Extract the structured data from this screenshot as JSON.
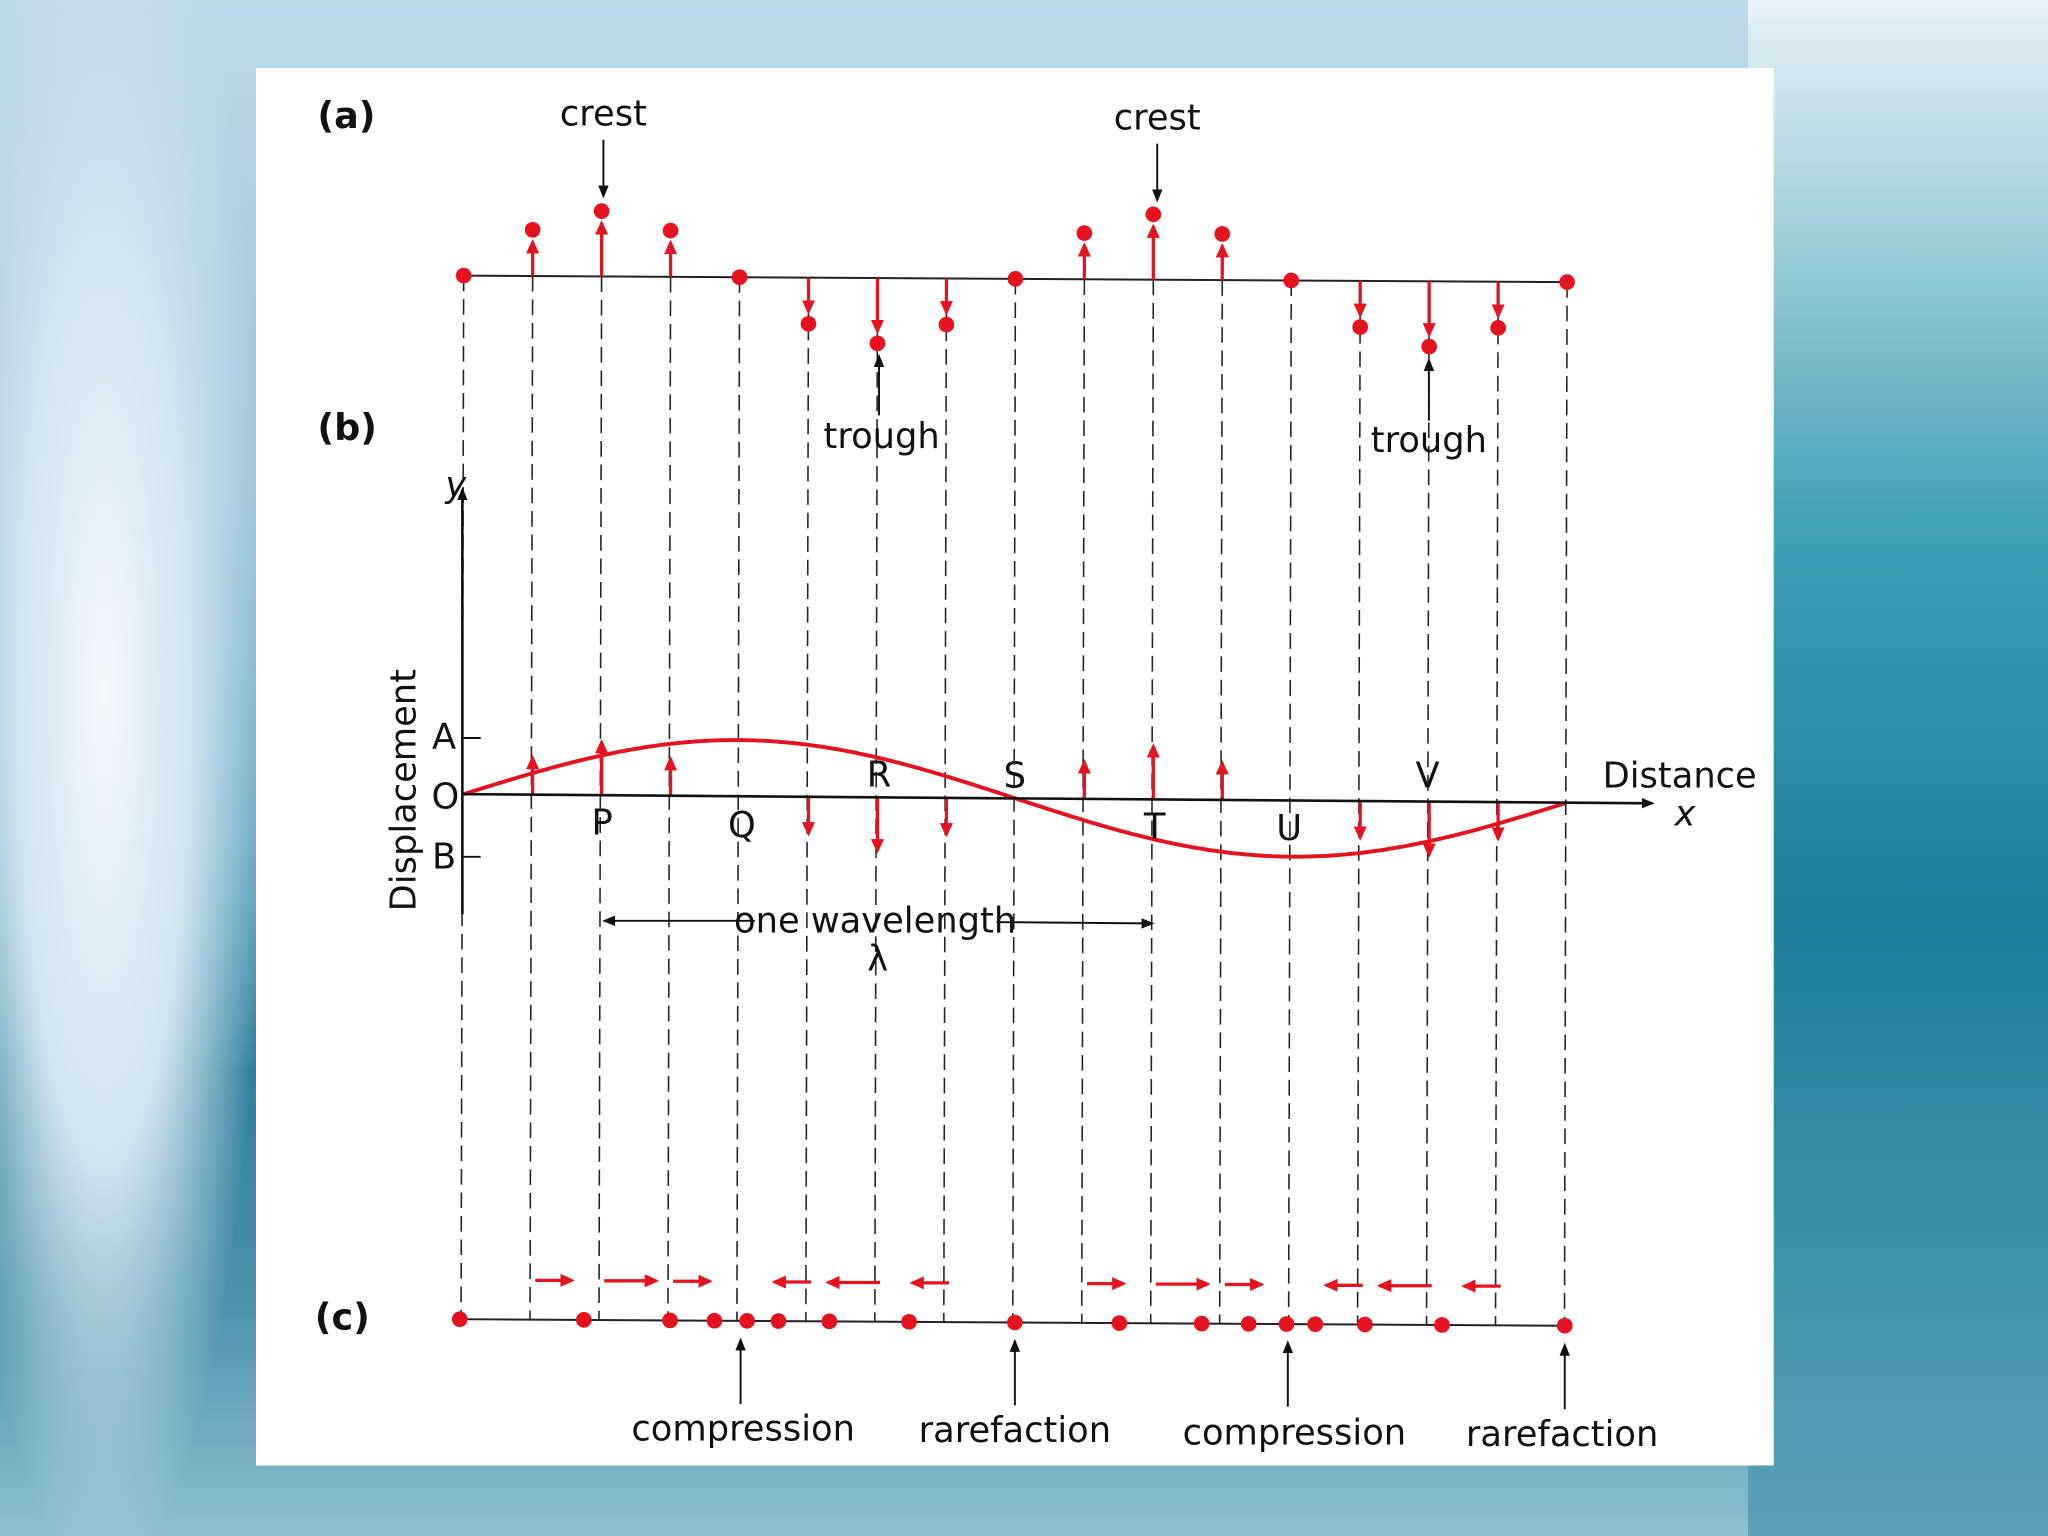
{
  "panel_labels": {
    "a": "(a)",
    "b": "(b)",
    "c": "(c)"
  },
  "row_a": {
    "crest_label": "crest",
    "trough_label": "trough"
  },
  "row_b": {
    "y_axis_symbol": "y",
    "y_axis_label": "Displacement",
    "x_axis_label": "Distance",
    "x_axis_symbol": "x",
    "amplitude_marks": {
      "top": "A",
      "origin": "O",
      "bottom": "B"
    },
    "points": [
      "P",
      "Q",
      "R",
      "S",
      "T",
      "U",
      "V"
    ],
    "wavelength_label": "one wavelength",
    "wavelength_symbol": "λ"
  },
  "row_c": {
    "compression_label": "compression",
    "rarefaction_label": "rarefaction"
  },
  "colors": {
    "wave": "#e5121f",
    "particle": "#e5121f",
    "panel": "#ffffff",
    "ink": "#111111"
  }
}
